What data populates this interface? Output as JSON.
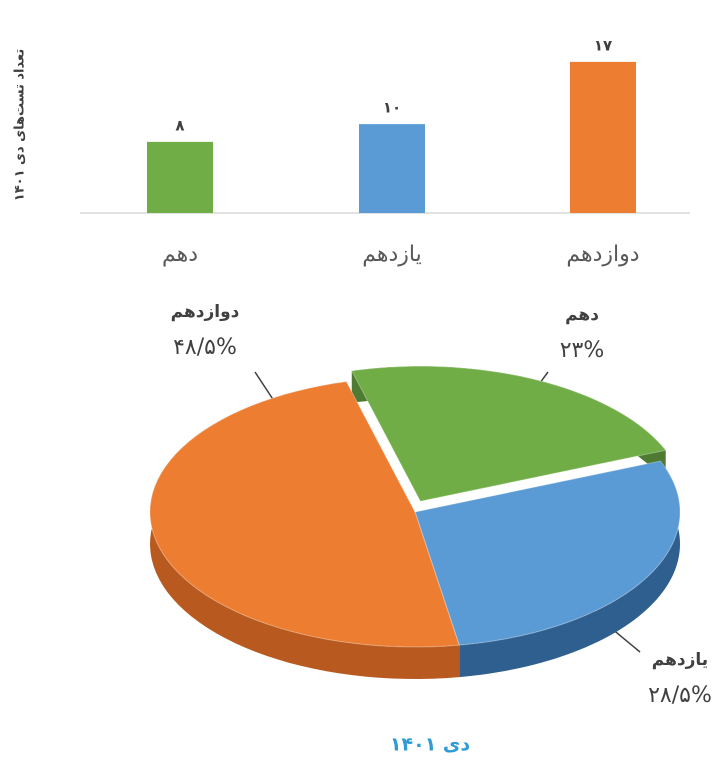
{
  "chart_data": [
    {
      "type": "bar",
      "y_label": "تعداد تست‌های دی ۱۴۰۱",
      "categories": [
        "دهم",
        "یازدهم",
        "دوازدهم"
      ],
      "values": [
        8,
        10,
        17
      ],
      "value_labels": [
        "۸",
        "۱۰",
        "۱۷"
      ],
      "colors": [
        "#70ad47",
        "#5b9bd5",
        "#ed7d31"
      ],
      "ylim": [
        0,
        18
      ]
    },
    {
      "type": "pie",
      "title": "دی ۱۴۰۱",
      "categories": [
        "دهم",
        "یازدهم",
        "دوازدهم"
      ],
      "values": [
        23,
        28.5,
        48.5
      ],
      "value_labels": [
        "۲۳%",
        "۲۸/۵%",
        "۴۸/۵%"
      ],
      "colors": [
        "#70ad47",
        "#5b9bd5",
        "#ed7d31"
      ]
    }
  ]
}
